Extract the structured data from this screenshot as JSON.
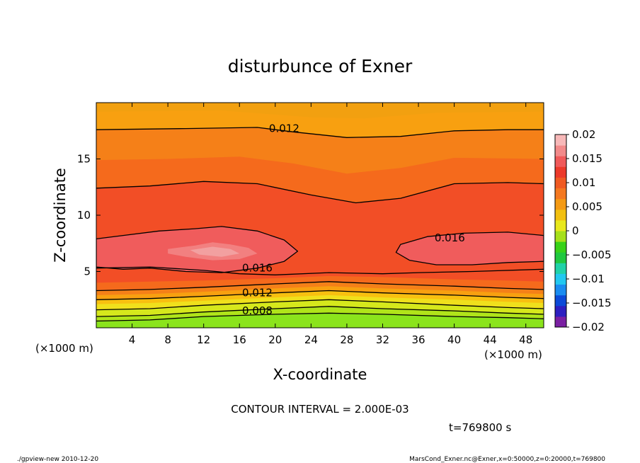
{
  "chart_data": {
    "type": "contour",
    "title": "disturbunce of Exner",
    "xlabel": "X-coordinate",
    "ylabel": "Z-coordinate",
    "x_unit": "(×1000 m)",
    "z_unit": "(×1000 m)",
    "xlim": [
      0,
      50
    ],
    "zlim": [
      0,
      20
    ],
    "x_ticks": [
      4,
      8,
      12,
      16,
      20,
      24,
      28,
      32,
      36,
      40,
      44,
      48
    ],
    "z_ticks": [
      5,
      10,
      15
    ],
    "contour_interval_text": "CONTOUR INTERVAL = 2.000E-03",
    "time_text": "t=769800 s",
    "contour_labels": [
      {
        "text": "0.012",
        "x": 21,
        "z": 17.7
      },
      {
        "text": "0.016",
        "x": 39.5,
        "z": 8.0
      },
      {
        "text": "0.016",
        "x": 18,
        "z": 5.3
      },
      {
        "text": "0.012",
        "x": 18,
        "z": 3.1
      },
      {
        "text": "0.008",
        "x": 18,
        "z": 1.5
      }
    ],
    "contour_lines": [
      {
        "level": 0.004,
        "points": [
          [
            0,
            0.6
          ],
          [
            6,
            0.7
          ],
          [
            12,
            1.0
          ],
          [
            20,
            1.2
          ],
          [
            26,
            1.3
          ],
          [
            32,
            1.2
          ],
          [
            40,
            1.0
          ],
          [
            46,
            0.9
          ],
          [
            50,
            0.8
          ]
        ]
      },
      {
        "level": 0.006,
        "points": [
          [
            0,
            1.0
          ],
          [
            6,
            1.1
          ],
          [
            12,
            1.4
          ],
          [
            20,
            1.7
          ],
          [
            26,
            1.9
          ],
          [
            32,
            1.7
          ],
          [
            40,
            1.5
          ],
          [
            46,
            1.3
          ],
          [
            50,
            1.2
          ]
        ]
      },
      {
        "level": 0.008,
        "points": [
          [
            0,
            1.6
          ],
          [
            6,
            1.7
          ],
          [
            12,
            2.0
          ],
          [
            20,
            2.3
          ],
          [
            26,
            2.5
          ],
          [
            32,
            2.3
          ],
          [
            40,
            2.0
          ],
          [
            46,
            1.8
          ],
          [
            50,
            1.7
          ]
        ]
      },
      {
        "level": 0.01,
        "points": [
          [
            0,
            2.5
          ],
          [
            6,
            2.6
          ],
          [
            12,
            2.8
          ],
          [
            20,
            3.1
          ],
          [
            26,
            3.3
          ],
          [
            32,
            3.1
          ],
          [
            40,
            2.9
          ],
          [
            46,
            2.7
          ],
          [
            50,
            2.6
          ]
        ]
      },
      {
        "level": 0.012,
        "points": [
          [
            0,
            3.3
          ],
          [
            6,
            3.4
          ],
          [
            12,
            3.6
          ],
          [
            20,
            3.9
          ],
          [
            26,
            4.1
          ],
          [
            32,
            3.9
          ],
          [
            40,
            3.7
          ],
          [
            46,
            3.5
          ],
          [
            50,
            3.4
          ]
        ]
      },
      {
        "level": 0.014,
        "points": [
          [
            0,
            5.3
          ],
          [
            6,
            5.4
          ],
          [
            12,
            5.1
          ],
          [
            16,
            4.8
          ],
          [
            20,
            4.7
          ],
          [
            26,
            4.9
          ],
          [
            32,
            4.8
          ],
          [
            36,
            4.9
          ],
          [
            42,
            5.0
          ],
          [
            50,
            5.2
          ]
        ]
      },
      {
        "level": 0.014,
        "points": [
          [
            0,
            12.4
          ],
          [
            6,
            12.6
          ],
          [
            12,
            13.0
          ],
          [
            18,
            12.8
          ],
          [
            24,
            11.8
          ],
          [
            29,
            11.1
          ],
          [
            34,
            11.5
          ],
          [
            40,
            12.8
          ],
          [
            46,
            12.9
          ],
          [
            50,
            12.8
          ]
        ]
      },
      {
        "level": 0.012,
        "points": [
          [
            0,
            17.6
          ],
          [
            10,
            17.7
          ],
          [
            18,
            17.8
          ],
          [
            22,
            17.4
          ],
          [
            28,
            16.9
          ],
          [
            34,
            17.0
          ],
          [
            40,
            17.5
          ],
          [
            46,
            17.6
          ],
          [
            50,
            17.6
          ]
        ]
      },
      {
        "level": 0.016,
        "closed": true,
        "points": [
          [
            0,
            7.9
          ],
          [
            3,
            8.2
          ],
          [
            7,
            8.6
          ],
          [
            11,
            8.8
          ],
          [
            14,
            9.0
          ],
          [
            18,
            8.6
          ],
          [
            21,
            7.8
          ],
          [
            22.5,
            6.8
          ],
          [
            21,
            5.9
          ],
          [
            18,
            5.3
          ],
          [
            14,
            4.9
          ],
          [
            10,
            5.0
          ],
          [
            6,
            5.3
          ],
          [
            3,
            5.2
          ],
          [
            0,
            5.4
          ]
        ]
      },
      {
        "level": 0.016,
        "closed": true,
        "points": [
          [
            50,
            8.2
          ],
          [
            46,
            8.5
          ],
          [
            41,
            8.4
          ],
          [
            37,
            8.1
          ],
          [
            34,
            7.4
          ],
          [
            33.5,
            6.7
          ],
          [
            35,
            6.0
          ],
          [
            38,
            5.6
          ],
          [
            42,
            5.6
          ],
          [
            46,
            5.8
          ],
          [
            50,
            5.9
          ]
        ]
      }
    ],
    "colorbar": {
      "min": -0.02,
      "max": 0.02,
      "tick_labels": [
        "0.02",
        "0.015",
        "0.01",
        "0.005",
        "0",
        "−0.005",
        "−0.01",
        "−0.015",
        "−0.02"
      ],
      "colors": [
        "#7a1fa2",
        "#2d1fc0",
        "#0c4ad8",
        "#1a8cf0",
        "#22c8f0",
        "#20d2a8",
        "#20c840",
        "#38d218",
        "#a6e01a",
        "#e8e81c",
        "#f2c010",
        "#f49a14",
        "#f47820",
        "#f05a22",
        "#ec3a2a",
        "#f05a5a",
        "#f28a8a",
        "#f7b8b8"
      ]
    },
    "fill_colors": {
      "c00": "#8be41c",
      "c02": "#b0e41a",
      "c04": "#d6e81c",
      "c06": "#f0e01c",
      "c08": "#f8c010",
      "c10": "#f8a010",
      "c12": "#f58018",
      "c13": "#f56a1c",
      "c14": "#f24e26",
      "c15": "#ee3a2c",
      "c16": "#f05c5c",
      "c17": "#f28080",
      "c18": "#f2a0a0",
      "c03top": "#f59a18",
      "c15top": "#f2a010"
    }
  },
  "footer": {
    "left": "./gpview-new   2010-12-20",
    "right": "MarsCond_Exner.nc@Exner,x=0:50000,z=0:20000,t=769800"
  }
}
